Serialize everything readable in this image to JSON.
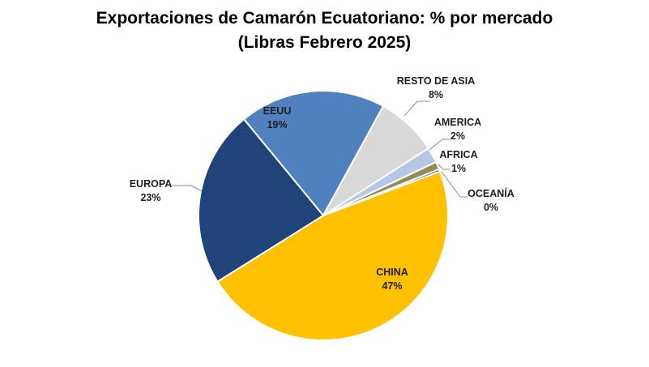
{
  "chart_data": {
    "type": "pie",
    "title": "Exportaciones de Camarón Ecuatoriano: % por mercado",
    "subtitle": "(Libras Febrero 2025)",
    "slices": [
      {
        "name": "CHINA",
        "value": 47,
        "label": "47%",
        "color": "#FFC000"
      },
      {
        "name": "EUROPA",
        "value": 23,
        "label": "23%",
        "color": "#1F4479"
      },
      {
        "name": "EEUU",
        "value": 19,
        "label": "19%",
        "color": "#4E81BE"
      },
      {
        "name": "RESTO DE ASIA",
        "value": 8,
        "label": "8%",
        "color": "#D9D9D9"
      },
      {
        "name": "AMERICA",
        "value": 2,
        "label": "2%",
        "color": "#B4C7E7"
      },
      {
        "name": "AFRICA",
        "value": 1,
        "label": "1%",
        "color": "#948A54"
      },
      {
        "name": "OCEANÍA",
        "value": 0.3,
        "label": "0%",
        "color": "#1F4479"
      }
    ],
    "legend": "none"
  }
}
